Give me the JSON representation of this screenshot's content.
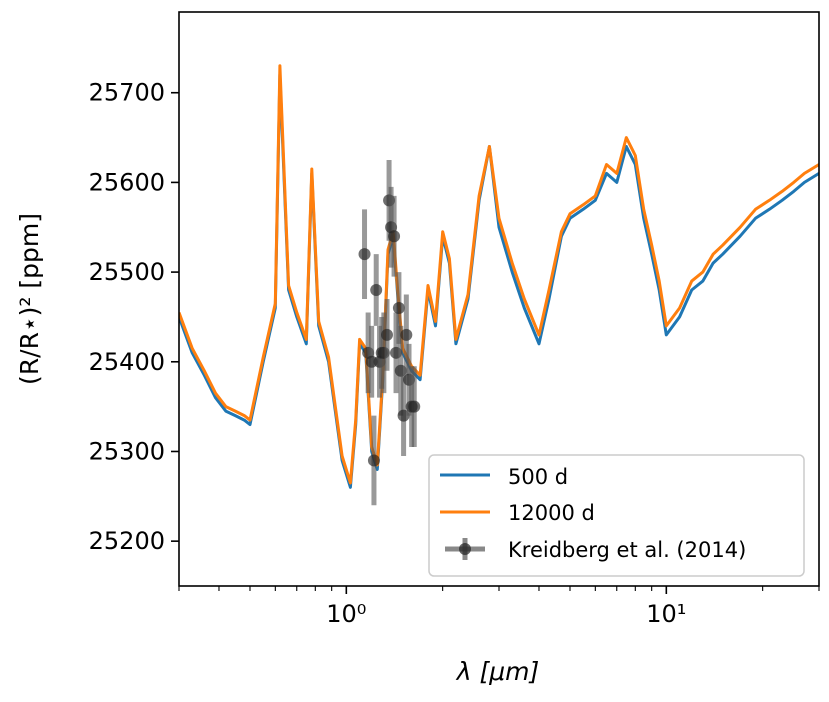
{
  "chart_data": {
    "type": "line",
    "xlabel": "λ [μm]",
    "ylabel": "(R/R⋆)² [ppm]",
    "xscale": "log",
    "xlim": [
      0.3,
      30
    ],
    "ylim": [
      25150,
      25790
    ],
    "x_ticks": [
      {
        "value": 1,
        "label": "10⁰"
      },
      {
        "value": 10,
        "label": "10¹"
      }
    ],
    "y_ticks": [
      25200,
      25300,
      25400,
      25500,
      25600,
      25700
    ],
    "legend_position": "lower-right",
    "grid": false,
    "series": [
      {
        "name": "500 d",
        "color": "#1f77b4",
        "x": [
          0.3,
          0.33,
          0.36,
          0.39,
          0.42,
          0.45,
          0.48,
          0.5,
          0.55,
          0.6,
          0.62,
          0.66,
          0.7,
          0.75,
          0.78,
          0.82,
          0.88,
          0.92,
          0.97,
          1.03,
          1.07,
          1.1,
          1.15,
          1.2,
          1.25,
          1.3,
          1.35,
          1.4,
          1.45,
          1.5,
          1.6,
          1.7,
          1.8,
          1.9,
          2.0,
          2.1,
          2.2,
          2.4,
          2.6,
          2.8,
          3.0,
          3.3,
          3.6,
          4.0,
          4.3,
          4.7,
          5.0,
          5.5,
          6.0,
          6.5,
          7.0,
          7.5,
          8.0,
          8.5,
          9.0,
          9.5,
          10.0,
          11,
          12,
          13,
          14,
          15,
          17,
          19,
          21,
          23,
          25,
          27,
          30
        ],
        "y": [
          25450,
          25410,
          25385,
          25360,
          25345,
          25340,
          25335,
          25330,
          25400,
          25460,
          25720,
          25480,
          25450,
          25420,
          25610,
          25440,
          25400,
          25350,
          25290,
          25260,
          25330,
          25420,
          25410,
          25300,
          25280,
          25380,
          25520,
          25540,
          25470,
          25410,
          25390,
          25380,
          25480,
          25440,
          25540,
          25510,
          25420,
          25470,
          25580,
          25640,
          25550,
          25500,
          25460,
          25420,
          25470,
          25540,
          25560,
          25570,
          25580,
          25610,
          25600,
          25640,
          25620,
          25560,
          25520,
          25480,
          25430,
          25450,
          25480,
          25490,
          25510,
          25520,
          25540,
          25560,
          25570,
          25580,
          25590,
          25600,
          25610
        ]
      },
      {
        "name": "12000 d",
        "color": "#ff7f0e",
        "x": [
          0.3,
          0.33,
          0.36,
          0.39,
          0.42,
          0.45,
          0.48,
          0.5,
          0.55,
          0.6,
          0.62,
          0.66,
          0.7,
          0.75,
          0.78,
          0.82,
          0.88,
          0.92,
          0.97,
          1.03,
          1.07,
          1.1,
          1.15,
          1.2,
          1.25,
          1.3,
          1.35,
          1.4,
          1.45,
          1.5,
          1.6,
          1.7,
          1.8,
          1.9,
          2.0,
          2.1,
          2.2,
          2.4,
          2.6,
          2.8,
          3.0,
          3.3,
          3.6,
          4.0,
          4.3,
          4.7,
          5.0,
          5.5,
          6.0,
          6.5,
          7.0,
          7.5,
          8.0,
          8.5,
          9.0,
          9.5,
          10.0,
          11,
          12,
          13,
          14,
          15,
          17,
          19,
          21,
          23,
          25,
          27,
          30
        ],
        "y": [
          25455,
          25415,
          25390,
          25365,
          25350,
          25345,
          25340,
          25335,
          25405,
          25465,
          25730,
          25485,
          25455,
          25425,
          25615,
          25445,
          25405,
          25355,
          25295,
          25265,
          25335,
          25425,
          25415,
          25305,
          25285,
          25385,
          25525,
          25545,
          25475,
          25415,
          25395,
          25385,
          25485,
          25445,
          25545,
          25515,
          25425,
          25475,
          25585,
          25640,
          25560,
          25510,
          25470,
          25430,
          25480,
          25545,
          25565,
          25575,
          25585,
          25620,
          25610,
          25650,
          25630,
          25570,
          25530,
          25490,
          25440,
          25460,
          25490,
          25500,
          25520,
          25530,
          25550,
          25570,
          25580,
          25590,
          25600,
          25610,
          25620
        ]
      },
      {
        "name": "Kreidberg et al. (2014)",
        "color": "#000000",
        "kind": "errorbar",
        "x": [
          1.14,
          1.17,
          1.2,
          1.22,
          1.24,
          1.27,
          1.29,
          1.31,
          1.34,
          1.36,
          1.38,
          1.41,
          1.43,
          1.46,
          1.48,
          1.51,
          1.54,
          1.57,
          1.6,
          1.63
        ],
        "y": [
          25520,
          25410,
          25400,
          25290,
          25480,
          25400,
          25410,
          25410,
          25430,
          25580,
          25550,
          25540,
          25410,
          25460,
          25390,
          25340,
          25430,
          25380,
          25350,
          25350
        ],
        "yerr": [
          50,
          45,
          40,
          50,
          40,
          40,
          40,
          45,
          40,
          45,
          45,
          45,
          45,
          40,
          50,
          45,
          45,
          40,
          45,
          45
        ]
      }
    ]
  }
}
